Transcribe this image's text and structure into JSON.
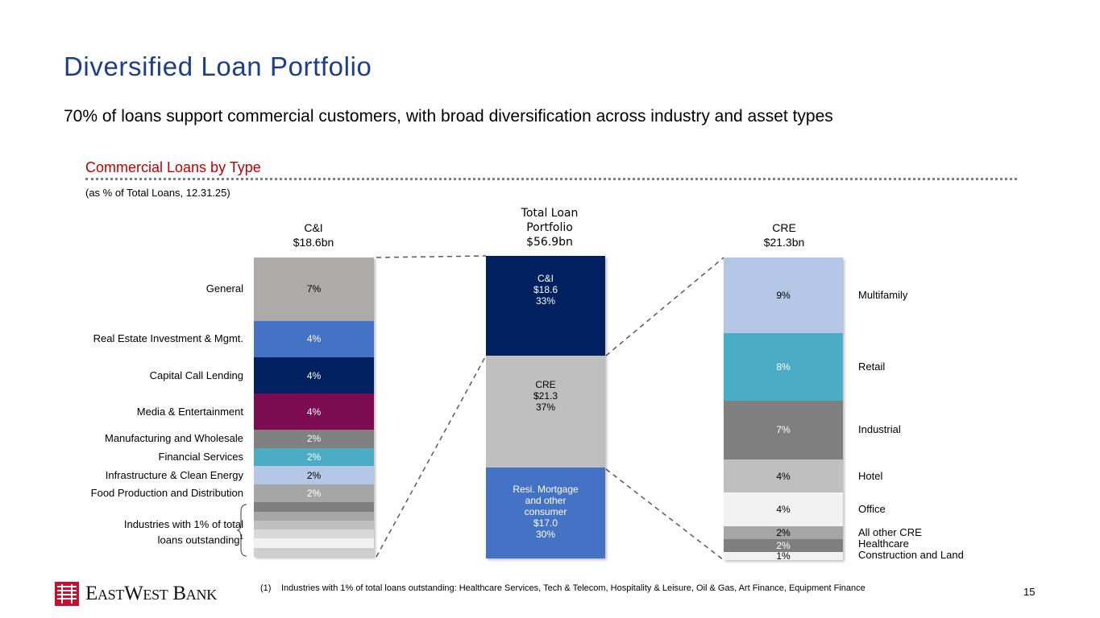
{
  "page": {
    "title": "Diversified Loan Portfolio",
    "subtitle": "70% of loans support commercial customers, with broad diversification across industry and asset types",
    "section_title": "Commercial Loans by Type",
    "section_note": "(as % of Total Loans, 12.31.25)",
    "footnote_number": "(1)",
    "footnote_text": "Industries with 1% of total loans outstanding: Healthcare Services, Tech & Telecom, Hospitality & Leisure, Oil & Gas, Art Finance, Equipment Finance",
    "page_number": "15",
    "logo_text": "EastWestBank"
  },
  "chart_data": [
    {
      "type": "bar",
      "stacked": true,
      "title_line1": "C&I",
      "title_line2": "$18.6bn",
      "total_value": 18.6,
      "units": "% of total loans",
      "bracket_label_line1": "Industries with 1% of total",
      "bracket_label_line2": "loans outstanding",
      "bracket_footnote_ref": "1",
      "segments": [
        {
          "label": "General",
          "value": 7,
          "display": "7%",
          "color": "#aeaaaa",
          "text_color": "#000000"
        },
        {
          "label": "Real Estate Investment & Mgmt.",
          "value": 4,
          "display": "4%",
          "color": "#4472c4",
          "text_color": "#ffffff"
        },
        {
          "label": "Capital Call Lending",
          "value": 4,
          "display": "4%",
          "color": "#002060",
          "text_color": "#ffffff"
        },
        {
          "label": "Media & Entertainment",
          "value": 4,
          "display": "4%",
          "color": "#7b0c52",
          "text_color": "#ffffff"
        },
        {
          "label": "Manufacturing and Wholesale",
          "value": 2,
          "display": "2%",
          "color": "#808080",
          "text_color": "#ffffff"
        },
        {
          "label": "Financial Services",
          "value": 2,
          "display": "2%",
          "color": "#4bacc6",
          "text_color": "#ffffff"
        },
        {
          "label": "Infrastructure & Clean Energy",
          "value": 2,
          "display": "2%",
          "color": "#b4c7e7",
          "text_color": "#000000"
        },
        {
          "label": "Food Production and Distribution",
          "value": 2,
          "display": "2%",
          "color": "#a6a6a6",
          "text_color": "#ffffff"
        },
        {
          "label": "Healthcare Services",
          "value": 1,
          "display": "",
          "color": "#7f7f7f",
          "text_color": "#ffffff",
          "one_percent": true
        },
        {
          "label": "Tech & Telecom",
          "value": 1,
          "display": "",
          "color": "#a6a6a6",
          "text_color": "#ffffff",
          "one_percent": true
        },
        {
          "label": "Hospitality & Leisure",
          "value": 1,
          "display": "",
          "color": "#bfbfbf",
          "text_color": "#ffffff",
          "one_percent": true
        },
        {
          "label": "Oil & Gas",
          "value": 1,
          "display": "",
          "color": "#d9d9d9",
          "text_color": "#ffffff",
          "one_percent": true
        },
        {
          "label": "Art Finance",
          "value": 1,
          "display": "",
          "color": "#f2f2f2",
          "text_color": "#ffffff",
          "one_percent": true
        },
        {
          "label": "Equipment Finance",
          "value": 1,
          "display": "",
          "color": "#d0cece",
          "text_color": "#ffffff",
          "one_percent": true
        }
      ]
    },
    {
      "type": "bar",
      "stacked": true,
      "title_line1": "Total Loan",
      "title_line2": "Portfolio",
      "title_line3": "$56.9bn",
      "total_value": 56.9,
      "units": "$bn",
      "segments": [
        {
          "label_lines": [
            "C&I",
            "$18.6",
            "33%"
          ],
          "value": 33,
          "amount": 18.6,
          "color": "#002060",
          "text_color": "#ffffff"
        },
        {
          "label_lines": [
            "CRE",
            "$21.3",
            "37%"
          ],
          "value": 37,
          "amount": 21.3,
          "color": "#bfbfbf",
          "text_color": "#000000"
        },
        {
          "label_lines": [
            "Resi. Mortgage",
            "and other",
            "consumer",
            "$17.0",
            "30%"
          ],
          "value": 30,
          "amount": 17.0,
          "color": "#4472c4",
          "text_color": "#ffffff"
        }
      ]
    },
    {
      "type": "bar",
      "stacked": true,
      "title_line1": "CRE",
      "title_line2": "$21.3bn",
      "total_value": 21.3,
      "units": "% of total loans",
      "segments": [
        {
          "label": "Multifamily",
          "value": 9,
          "display": "9%",
          "color": "#b4c7e7",
          "text_color": "#000000"
        },
        {
          "label": "Retail",
          "value": 8,
          "display": "8%",
          "color": "#4bacc6",
          "text_color": "#ffffff"
        },
        {
          "label": "Industrial",
          "value": 7,
          "display": "7%",
          "color": "#7f7f7f",
          "text_color": "#ffffff"
        },
        {
          "label": "Hotel",
          "value": 4,
          "display": "4%",
          "color": "#bfbfbf",
          "text_color": "#000000"
        },
        {
          "label": "Office",
          "value": 4,
          "display": "4%",
          "color": "#f2f2f2",
          "text_color": "#000000"
        },
        {
          "label": "All other CRE",
          "value": 1.5,
          "display": "2%",
          "color": "#a6a6a6",
          "text_color": "#000000"
        },
        {
          "label": "Healthcare",
          "value": 1.5,
          "display": "2%",
          "color": "#7f7f7f",
          "text_color": "#ffffff"
        },
        {
          "label": "Construction and Land",
          "value": 1,
          "display": "1%",
          "color": "#f2f2f2",
          "text_color": "#000000"
        }
      ]
    }
  ]
}
